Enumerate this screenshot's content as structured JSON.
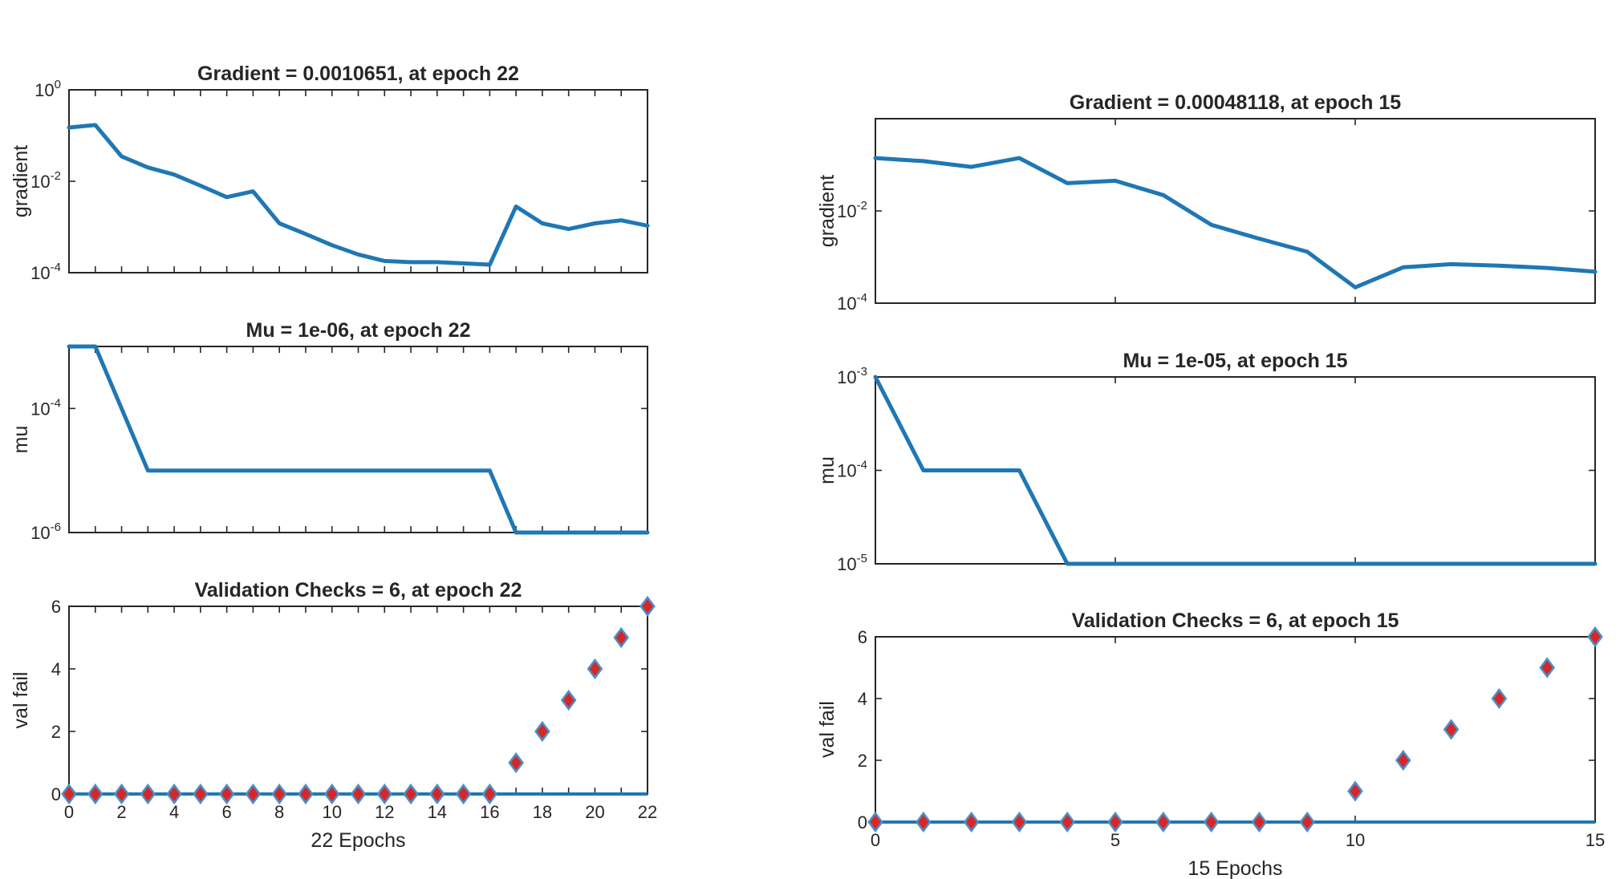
{
  "colors": {
    "line": "#1f77b4",
    "marker_fill": "#d62728",
    "marker_edge": "#4a90c8",
    "axes": "#262626"
  },
  "chart_data": [
    {
      "id": "left-gradient",
      "type": "line",
      "title": "Gradient = 0.0010651, at epoch 22",
      "ylabel": "gradient",
      "xlabel": "",
      "yscale": "log",
      "ylim": [
        0.0001,
        1
      ],
      "xlim": [
        0,
        22
      ],
      "yticks": [
        {
          "value": 1,
          "base": "10",
          "exp": "0"
        },
        {
          "value": 0.01,
          "base": "10",
          "exp": "-2"
        },
        {
          "value": 0.0001,
          "base": "10",
          "exp": "-4"
        }
      ],
      "xticks": [],
      "x": [
        0,
        1,
        2,
        3,
        4,
        5,
        6,
        7,
        8,
        9,
        10,
        11,
        12,
        13,
        14,
        15,
        16,
        17,
        18,
        19,
        20,
        21,
        22
      ],
      "values": [
        0.15,
        0.17,
        0.035,
        0.02,
        0.014,
        0.008,
        0.0045,
        0.006,
        0.0012,
        0.0007,
        0.0004,
        0.00025,
        0.00018,
        0.00017,
        0.00017,
        0.00016,
        0.00015,
        0.0028,
        0.0012,
        0.0009,
        0.0012,
        0.0014,
        0.0010651
      ]
    },
    {
      "id": "left-mu",
      "type": "line",
      "title": "Mu = 1e-06, at epoch 22",
      "ylabel": "mu",
      "xlabel": "",
      "yscale": "log",
      "ylim": [
        1e-06,
        0.001
      ],
      "xlim": [
        0,
        22
      ],
      "yticks": [
        {
          "value": 0.0001,
          "base": "10",
          "exp": "-4"
        },
        {
          "value": 1e-06,
          "base": "10",
          "exp": "-6"
        }
      ],
      "xticks": [],
      "x": [
        0,
        1,
        2,
        3,
        4,
        5,
        6,
        7,
        8,
        9,
        10,
        11,
        12,
        13,
        14,
        15,
        16,
        17,
        18,
        19,
        20,
        21,
        22
      ],
      "values": [
        0.001,
        0.001,
        0.0001,
        1e-05,
        1e-05,
        1e-05,
        1e-05,
        1e-05,
        1e-05,
        1e-05,
        1e-05,
        1e-05,
        1e-05,
        1e-05,
        1e-05,
        1e-05,
        1e-05,
        1e-06,
        1e-06,
        1e-06,
        1e-06,
        1e-06,
        1e-06
      ]
    },
    {
      "id": "left-val",
      "type": "scatter",
      "title": "Validation Checks = 6, at epoch 22",
      "ylabel": "val fail",
      "xlabel": "22 Epochs",
      "yscale": "linear",
      "ylim": [
        0,
        6
      ],
      "xlim": [
        0,
        22
      ],
      "yticks": [
        {
          "value": 0,
          "label": "0"
        },
        {
          "value": 2,
          "label": "2"
        },
        {
          "value": 4,
          "label": "4"
        },
        {
          "value": 6,
          "label": "6"
        }
      ],
      "xticks": [
        {
          "value": 0,
          "label": "0"
        },
        {
          "value": 2,
          "label": "2"
        },
        {
          "value": 4,
          "label": "4"
        },
        {
          "value": 6,
          "label": "6"
        },
        {
          "value": 8,
          "label": "8"
        },
        {
          "value": 10,
          "label": "10"
        },
        {
          "value": 12,
          "label": "12"
        },
        {
          "value": 14,
          "label": "14"
        },
        {
          "value": 16,
          "label": "16"
        },
        {
          "value": 18,
          "label": "18"
        },
        {
          "value": 20,
          "label": "20"
        },
        {
          "value": 22,
          "label": "22"
        }
      ],
      "x": [
        0,
        1,
        2,
        3,
        4,
        5,
        6,
        7,
        8,
        9,
        10,
        11,
        12,
        13,
        14,
        15,
        16,
        17,
        18,
        19,
        20,
        21,
        22
      ],
      "values": [
        0,
        0,
        0,
        0,
        0,
        0,
        0,
        0,
        0,
        0,
        0,
        0,
        0,
        0,
        0,
        0,
        0,
        1,
        2,
        3,
        4,
        5,
        6
      ]
    },
    {
      "id": "right-gradient",
      "type": "line",
      "title": "Gradient = 0.00048118, at epoch 15",
      "ylabel": "gradient",
      "xlabel": "",
      "yscale": "log",
      "ylim": [
        0.0001,
        1
      ],
      "xlim": [
        0,
        15
      ],
      "yticks": [
        {
          "value": 0.01,
          "base": "10",
          "exp": "-2"
        },
        {
          "value": 0.0001,
          "base": "10",
          "exp": "-4"
        }
      ],
      "xticks": [],
      "x": [
        0,
        1,
        2,
        3,
        4,
        5,
        6,
        7,
        8,
        9,
        10,
        11,
        12,
        13,
        14,
        15
      ],
      "values": [
        0.14,
        0.12,
        0.09,
        0.14,
        0.04,
        0.045,
        0.022,
        0.005,
        0.0025,
        0.0013,
        0.00022,
        0.0006,
        0.0007,
        0.00065,
        0.00058,
        0.00048118
      ]
    },
    {
      "id": "right-mu",
      "type": "line",
      "title": "Mu = 1e-05, at epoch 15",
      "ylabel": "mu",
      "xlabel": "",
      "yscale": "log",
      "ylim": [
        1e-05,
        0.001
      ],
      "xlim": [
        0,
        15
      ],
      "yticks": [
        {
          "value": 0.001,
          "base": "10",
          "exp": "-3"
        },
        {
          "value": 0.0001,
          "base": "10",
          "exp": "-4"
        },
        {
          "value": 1e-05,
          "base": "10",
          "exp": "-5"
        }
      ],
      "xticks": [],
      "x": [
        0,
        1,
        2,
        3,
        4,
        5,
        6,
        7,
        8,
        9,
        10,
        11,
        12,
        13,
        14,
        15
      ],
      "values": [
        0.001,
        0.0001,
        0.0001,
        0.0001,
        1e-05,
        1e-05,
        1e-05,
        1e-05,
        1e-05,
        1e-05,
        1e-05,
        1e-05,
        1e-05,
        1e-05,
        1e-05,
        1e-05
      ]
    },
    {
      "id": "right-val",
      "type": "scatter",
      "title": "Validation Checks = 6, at epoch 15",
      "ylabel": "val fail",
      "xlabel": "15 Epochs",
      "yscale": "linear",
      "ylim": [
        0,
        6
      ],
      "xlim": [
        0,
        15
      ],
      "yticks": [
        {
          "value": 0,
          "label": "0"
        },
        {
          "value": 2,
          "label": "2"
        },
        {
          "value": 4,
          "label": "4"
        },
        {
          "value": 6,
          "label": "6"
        }
      ],
      "xticks": [
        {
          "value": 0,
          "label": "0"
        },
        {
          "value": 5,
          "label": "5"
        },
        {
          "value": 10,
          "label": "10"
        },
        {
          "value": 15,
          "label": "15"
        }
      ],
      "x": [
        0,
        1,
        2,
        3,
        4,
        5,
        6,
        7,
        8,
        9,
        10,
        11,
        12,
        13,
        14,
        15
      ],
      "values": [
        0,
        0,
        0,
        0,
        0,
        0,
        0,
        0,
        0,
        0,
        1,
        2,
        3,
        4,
        5,
        6
      ]
    }
  ]
}
